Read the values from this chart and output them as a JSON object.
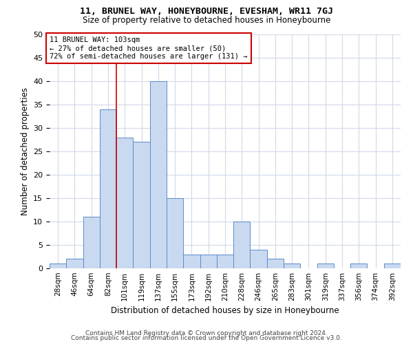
{
  "title1": "11, BRUNEL WAY, HONEYBOURNE, EVESHAM, WR11 7GJ",
  "title2": "Size of property relative to detached houses in Honeybourne",
  "xlabel": "Distribution of detached houses by size in Honeybourne",
  "ylabel": "Number of detached properties",
  "bin_labels": [
    "28sqm",
    "46sqm",
    "64sqm",
    "82sqm",
    "101sqm",
    "119sqm",
    "137sqm",
    "155sqm",
    "173sqm",
    "192sqm",
    "210sqm",
    "228sqm",
    "246sqm",
    "265sqm",
    "283sqm",
    "301sqm",
    "319sqm",
    "337sqm",
    "356sqm",
    "374sqm",
    "392sqm"
  ],
  "bar_values": [
    1,
    2,
    11,
    34,
    28,
    27,
    40,
    15,
    3,
    3,
    3,
    10,
    4,
    2,
    1,
    0,
    1,
    0,
    1,
    0,
    1
  ],
  "bar_color": "#c9d9f0",
  "bar_edge_color": "#5b8cc8",
  "property_bin_index": 4,
  "annotation_line1": "11 BRUNEL WAY: 103sqm",
  "annotation_line2": "← 27% of detached houses are smaller (50)",
  "annotation_line3": "72% of semi-detached houses are larger (131) →",
  "vline_color": "#cc0000",
  "annotation_box_edge": "#cc0000",
  "ylim": [
    0,
    50
  ],
  "yticks": [
    0,
    5,
    10,
    15,
    20,
    25,
    30,
    35,
    40,
    45,
    50
  ],
  "footer1": "Contains HM Land Registry data © Crown copyright and database right 2024.",
  "footer2": "Contains public sector information licensed under the Open Government Licence v3.0.",
  "background_color": "#ffffff",
  "grid_color": "#d0d8e8"
}
